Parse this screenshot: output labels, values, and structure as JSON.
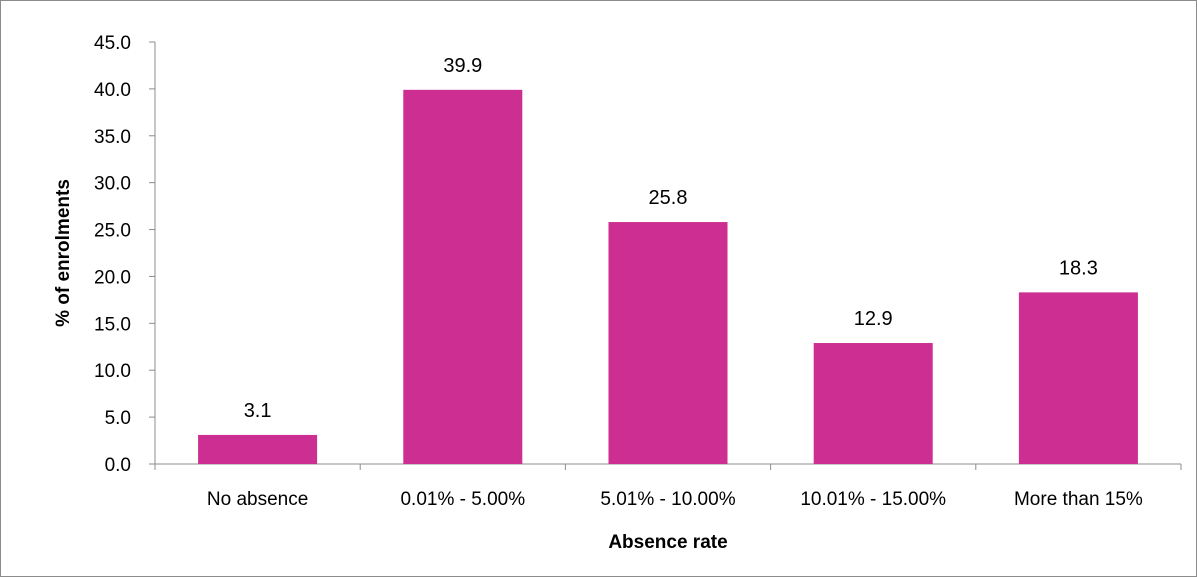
{
  "chart_data": {
    "type": "bar",
    "title": "",
    "xlabel": "Absence rate",
    "ylabel": "% of enrolments",
    "ylim": [
      0,
      45
    ],
    "ytick_step": 5,
    "ytick_labels": [
      "0.0",
      "5.0",
      "10.0",
      "15.0",
      "20.0",
      "25.0",
      "30.0",
      "35.0",
      "40.0",
      "45.0"
    ],
    "categories": [
      "No absence",
      "0.01% - 5.00%",
      "5.01% - 10.00%",
      "10.01% - 15.00%",
      "More than 15%"
    ],
    "values": [
      3.1,
      39.9,
      25.8,
      12.9,
      18.3
    ],
    "data_labels": [
      "3.1",
      "39.9",
      "25.8",
      "12.9",
      "18.3"
    ],
    "bar_color": "#cc2e91",
    "grid": false,
    "legend": "none"
  }
}
